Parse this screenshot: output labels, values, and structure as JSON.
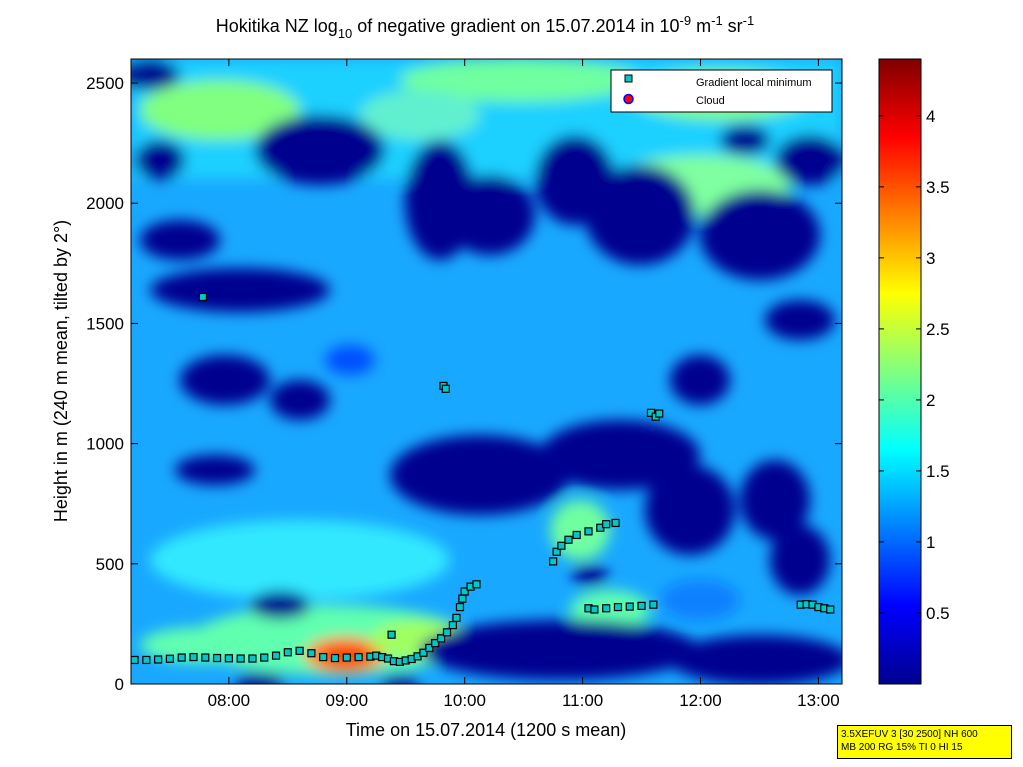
{
  "chart_data": {
    "type": "heatmap",
    "title": {
      "prefix": "Hokitika NZ log",
      "sub": "10",
      "middle": " of negative gradient on 15.07.2014 in 10",
      "sup1": "-9",
      "unit1": " m",
      "sup2": "-1",
      "unit2": " sr",
      "sup3": "-1"
    },
    "xlabel": "Time on 15.07.2014 (1200 s mean)",
    "ylabel": "Height in m (240 m mean, tilted by 2°)",
    "x_ticks": [
      "08:00",
      "09:00",
      "10:00",
      "11:00",
      "12:00",
      "13:00"
    ],
    "x_tick_values": [
      8.0,
      9.0,
      10.0,
      11.0,
      12.0,
      13.0
    ],
    "xlim": [
      7.17,
      13.2
    ],
    "y_ticks": [
      "0",
      "500",
      "1000",
      "1500",
      "2000",
      "2500"
    ],
    "y_tick_values": [
      0,
      500,
      1000,
      1500,
      2000,
      2500
    ],
    "ylim": [
      0,
      2600
    ],
    "colorbar": {
      "ticks": [
        "0.5",
        "1",
        "1.5",
        "2",
        "2.5",
        "3",
        "3.5",
        "4"
      ],
      "tick_values": [
        0.5,
        1,
        1.5,
        2,
        2.5,
        3,
        3.5,
        4
      ],
      "range": [
        0,
        4.4
      ],
      "colormap": "jet"
    },
    "colormap_stops": [
      "#00008f",
      "#0000ff",
      "#00ffff",
      "#ffff00",
      "#ff0000",
      "#800000"
    ],
    "legend": {
      "placement": "top-right",
      "entries": [
        "Gradient local minimum",
        "Cloud"
      ]
    },
    "series": [
      {
        "name": "Gradient local minimum",
        "marker": "square",
        "points": [
          [
            7.2,
            100
          ],
          [
            7.3,
            100
          ],
          [
            7.4,
            102
          ],
          [
            7.5,
            105
          ],
          [
            7.6,
            110
          ],
          [
            7.7,
            112
          ],
          [
            7.8,
            110
          ],
          [
            7.9,
            108
          ],
          [
            8.0,
            107
          ],
          [
            8.1,
            106
          ],
          [
            8.2,
            106
          ],
          [
            8.3,
            110
          ],
          [
            8.4,
            118
          ],
          [
            8.5,
            132
          ],
          [
            8.6,
            138
          ],
          [
            8.7,
            128
          ],
          [
            8.8,
            112
          ],
          [
            8.9,
            108
          ],
          [
            9.0,
            110
          ],
          [
            9.1,
            112
          ],
          [
            9.2,
            114
          ],
          [
            9.25,
            118
          ],
          [
            9.3,
            112
          ],
          [
            9.35,
            106
          ],
          [
            9.4,
            95
          ],
          [
            9.45,
            92
          ],
          [
            9.5,
            98
          ],
          [
            9.55,
            104
          ],
          [
            9.6,
            115
          ],
          [
            9.65,
            130
          ],
          [
            9.7,
            150
          ],
          [
            9.75,
            170
          ],
          [
            9.8,
            190
          ],
          [
            9.85,
            215
          ],
          [
            9.9,
            245
          ],
          [
            9.93,
            275
          ],
          [
            9.96,
            320
          ],
          [
            9.98,
            355
          ],
          [
            10.0,
            385
          ],
          [
            10.05,
            405
          ],
          [
            10.1,
            415
          ],
          [
            9.38,
            205
          ],
          [
            10.75,
            510
          ],
          [
            10.78,
            550
          ],
          [
            10.82,
            575
          ],
          [
            10.88,
            600
          ],
          [
            10.95,
            620
          ],
          [
            11.05,
            635
          ],
          [
            11.15,
            650
          ],
          [
            11.2,
            665
          ],
          [
            11.28,
            670
          ],
          [
            11.05,
            315
          ],
          [
            11.1,
            310
          ],
          [
            11.2,
            315
          ],
          [
            11.3,
            320
          ],
          [
            11.4,
            322
          ],
          [
            11.5,
            325
          ],
          [
            11.6,
            330
          ],
          [
            12.85,
            330
          ],
          [
            12.9,
            332
          ],
          [
            12.95,
            330
          ],
          [
            13.0,
            320
          ],
          [
            13.05,
            315
          ],
          [
            13.1,
            310
          ],
          [
            7.78,
            1610
          ],
          [
            9.82,
            1240
          ],
          [
            9.84,
            1228
          ],
          [
            11.58,
            1128
          ],
          [
            11.62,
            1112
          ],
          [
            11.65,
            1125
          ]
        ]
      },
      {
        "name": "Cloud",
        "marker": "circle",
        "points": []
      }
    ]
  },
  "info_box": {
    "line1": "3.5XEFUV 3 [30 2500] NH 600",
    "line2": "MB 200 RG 15% TI 0 HI 15"
  }
}
